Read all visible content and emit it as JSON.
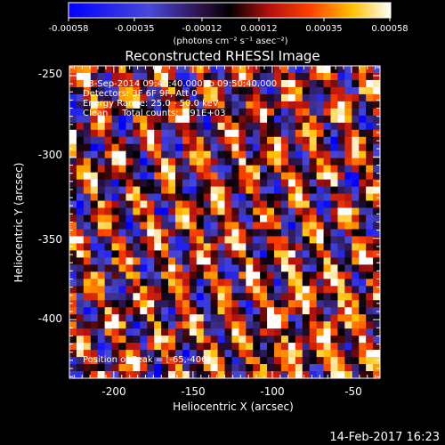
{
  "colorbar": {
    "ticks": [
      "-0.00058",
      "-0.00035",
      "-0.00012",
      "0.00012",
      "0.00035",
      "0.00058"
    ],
    "units": "(photons cm⁻² s⁻¹ asec⁻²)",
    "range": [
      -0.00058,
      0.00058
    ]
  },
  "chart_data": {
    "type": "heatmap",
    "title": "Reconstructed RHESSI Image",
    "xlabel": "Heliocentric X (arcsec)",
    "ylabel": "Heliocentric Y (arcsec)",
    "xlim": [
      -228,
      -32
    ],
    "ylim": [
      -436,
      -244
    ],
    "x_ticks": [
      "-200",
      "-150",
      "-100",
      "-50"
    ],
    "y_ticks": [
      "-250",
      "-300",
      "-350",
      "-400"
    ],
    "annotations": [
      "13-Sep-2014 09:40:40.000 to 09:50:40.000",
      "Detectors: 3F 6F 9F, Att 0",
      "Energy Range: 25.0 - 50.0 keV",
      "Clean     Total counts: 5.91E+03"
    ],
    "peak_label": "Position of Peak = [-65,-406]",
    "peak_position": [
      -65,
      -406
    ]
  },
  "timestamp": "14-Feb-2017 16:23"
}
